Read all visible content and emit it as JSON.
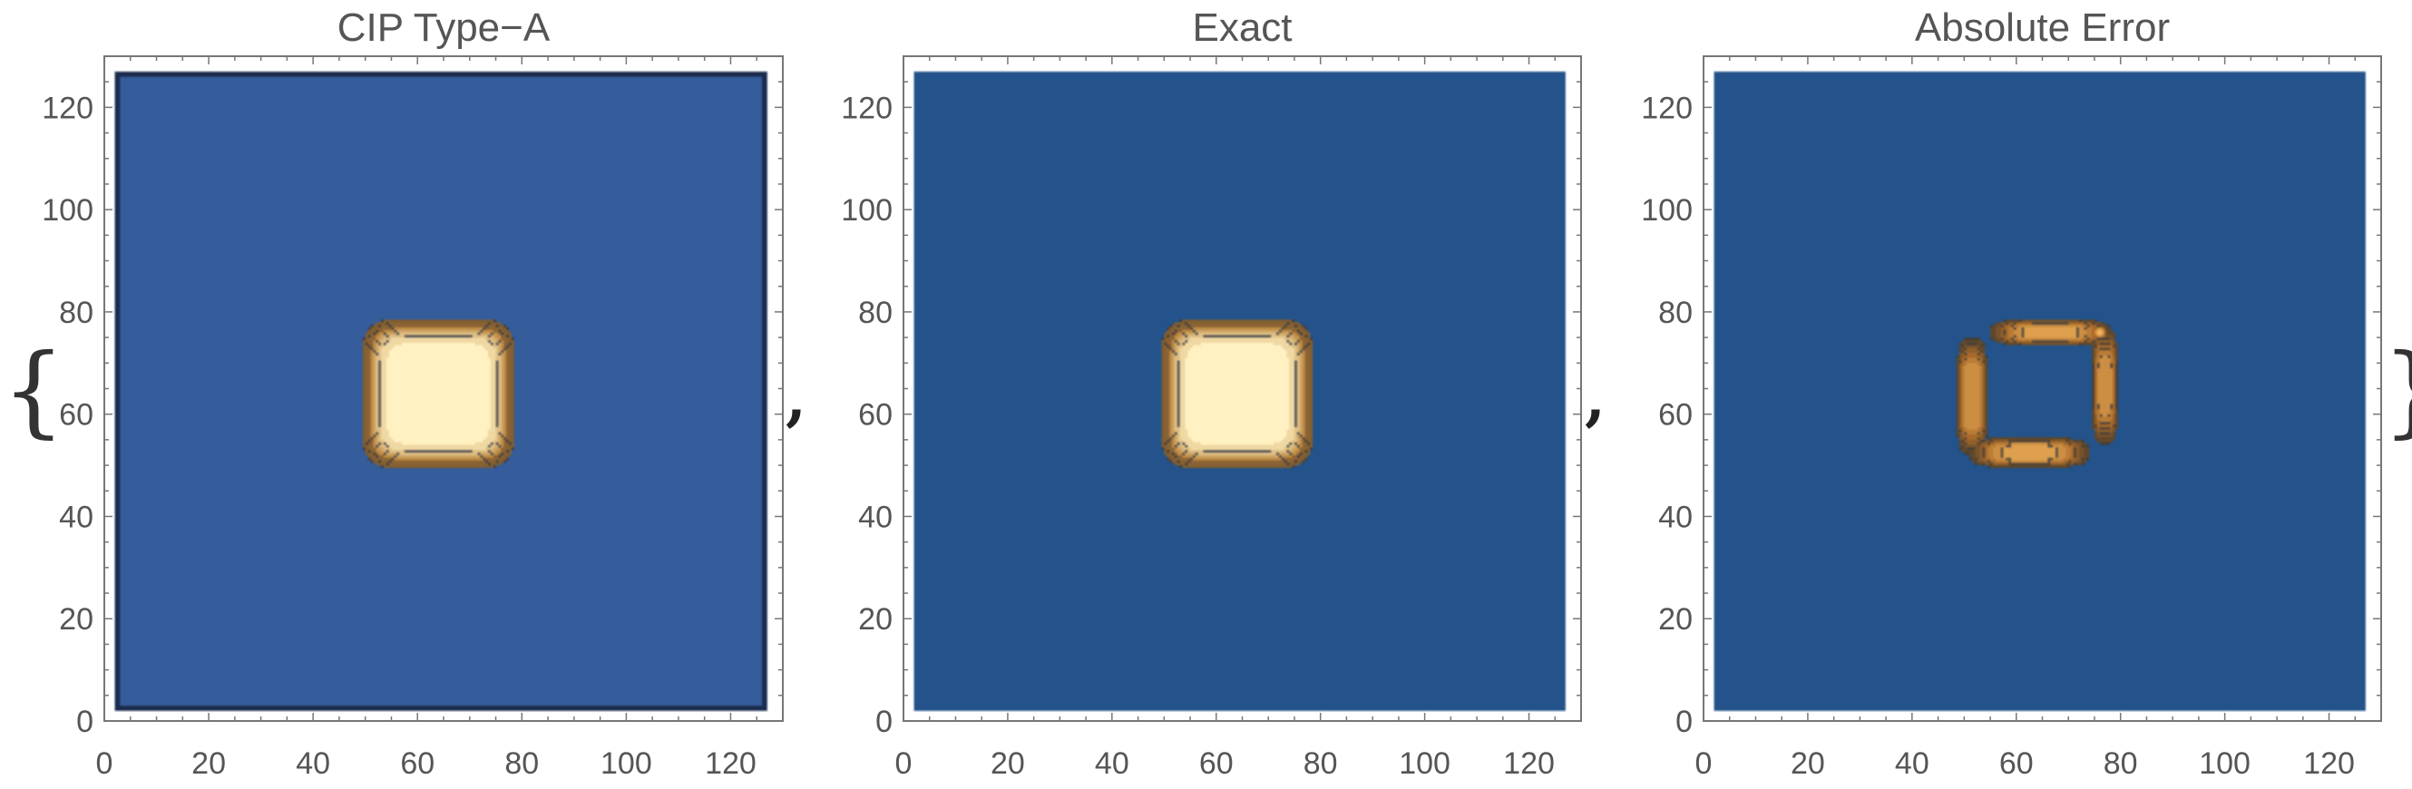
{
  "figure": {
    "open_brace": "{",
    "close_brace": "}",
    "separator": ","
  },
  "chart_data": [
    {
      "type": "heatmap",
      "title": "CIP Type−A",
      "xlim": [
        0,
        130
      ],
      "ylim": [
        0,
        130
      ],
      "xticks": [
        0,
        20,
        40,
        60,
        80,
        100,
        120
      ],
      "yticks": [
        0,
        20,
        40,
        60,
        80,
        100,
        120
      ],
      "field": "square pulse",
      "pulse_center": [
        64,
        64
      ],
      "pulse_half_width": 16,
      "plateau_half_width": 10,
      "domain": [
        2,
        127
      ],
      "background_color": "#355c9b",
      "boundary_artifact": true,
      "colors": {
        "low": "#355c9b",
        "mid": "#7a5a2e",
        "high": "#fff1c1",
        "contour": "#2f3340"
      }
    },
    {
      "type": "heatmap",
      "title": "Exact",
      "xlim": [
        0,
        130
      ],
      "ylim": [
        0,
        130
      ],
      "xticks": [
        0,
        20,
        40,
        60,
        80,
        100,
        120
      ],
      "yticks": [
        0,
        20,
        40,
        60,
        80,
        100,
        120
      ],
      "field": "square pulse",
      "pulse_center": [
        64,
        64
      ],
      "pulse_half_width": 16,
      "plateau_half_width": 10,
      "domain": [
        2,
        127
      ],
      "background_color": "#23538a",
      "boundary_artifact": false,
      "colors": {
        "low": "#23538a",
        "mid": "#7a5a2e",
        "high": "#fff1c1",
        "contour": "#2f3340"
      }
    },
    {
      "type": "heatmap",
      "title": "Absolute Error",
      "xlim": [
        0,
        130
      ],
      "ylim": [
        0,
        130
      ],
      "xticks": [
        0,
        20,
        40,
        60,
        80,
        100,
        120
      ],
      "yticks": [
        0,
        20,
        40,
        60,
        80,
        100,
        120
      ],
      "field": "error ring",
      "ring": [
        {
          "x": [
            48,
            55
          ],
          "y": [
            50,
            77
          ],
          "peak": 0.85
        },
        {
          "x": [
            53,
            80
          ],
          "y": [
            73,
            79
          ],
          "peak": 0.9
        },
        {
          "x": [
            74,
            80
          ],
          "y": [
            52,
            79
          ],
          "peak": 0.8
        },
        {
          "x": [
            49,
            76
          ],
          "y": [
            49,
            56
          ],
          "peak": 0.9
        }
      ],
      "hotspot": [
        76,
        76
      ],
      "domain": [
        2,
        127
      ],
      "background_color": "#23538a",
      "colors": {
        "low": "#23538a",
        "mid": "#a86a2a",
        "high": "#f0b25a",
        "contour": "#3a3a3a"
      }
    }
  ]
}
